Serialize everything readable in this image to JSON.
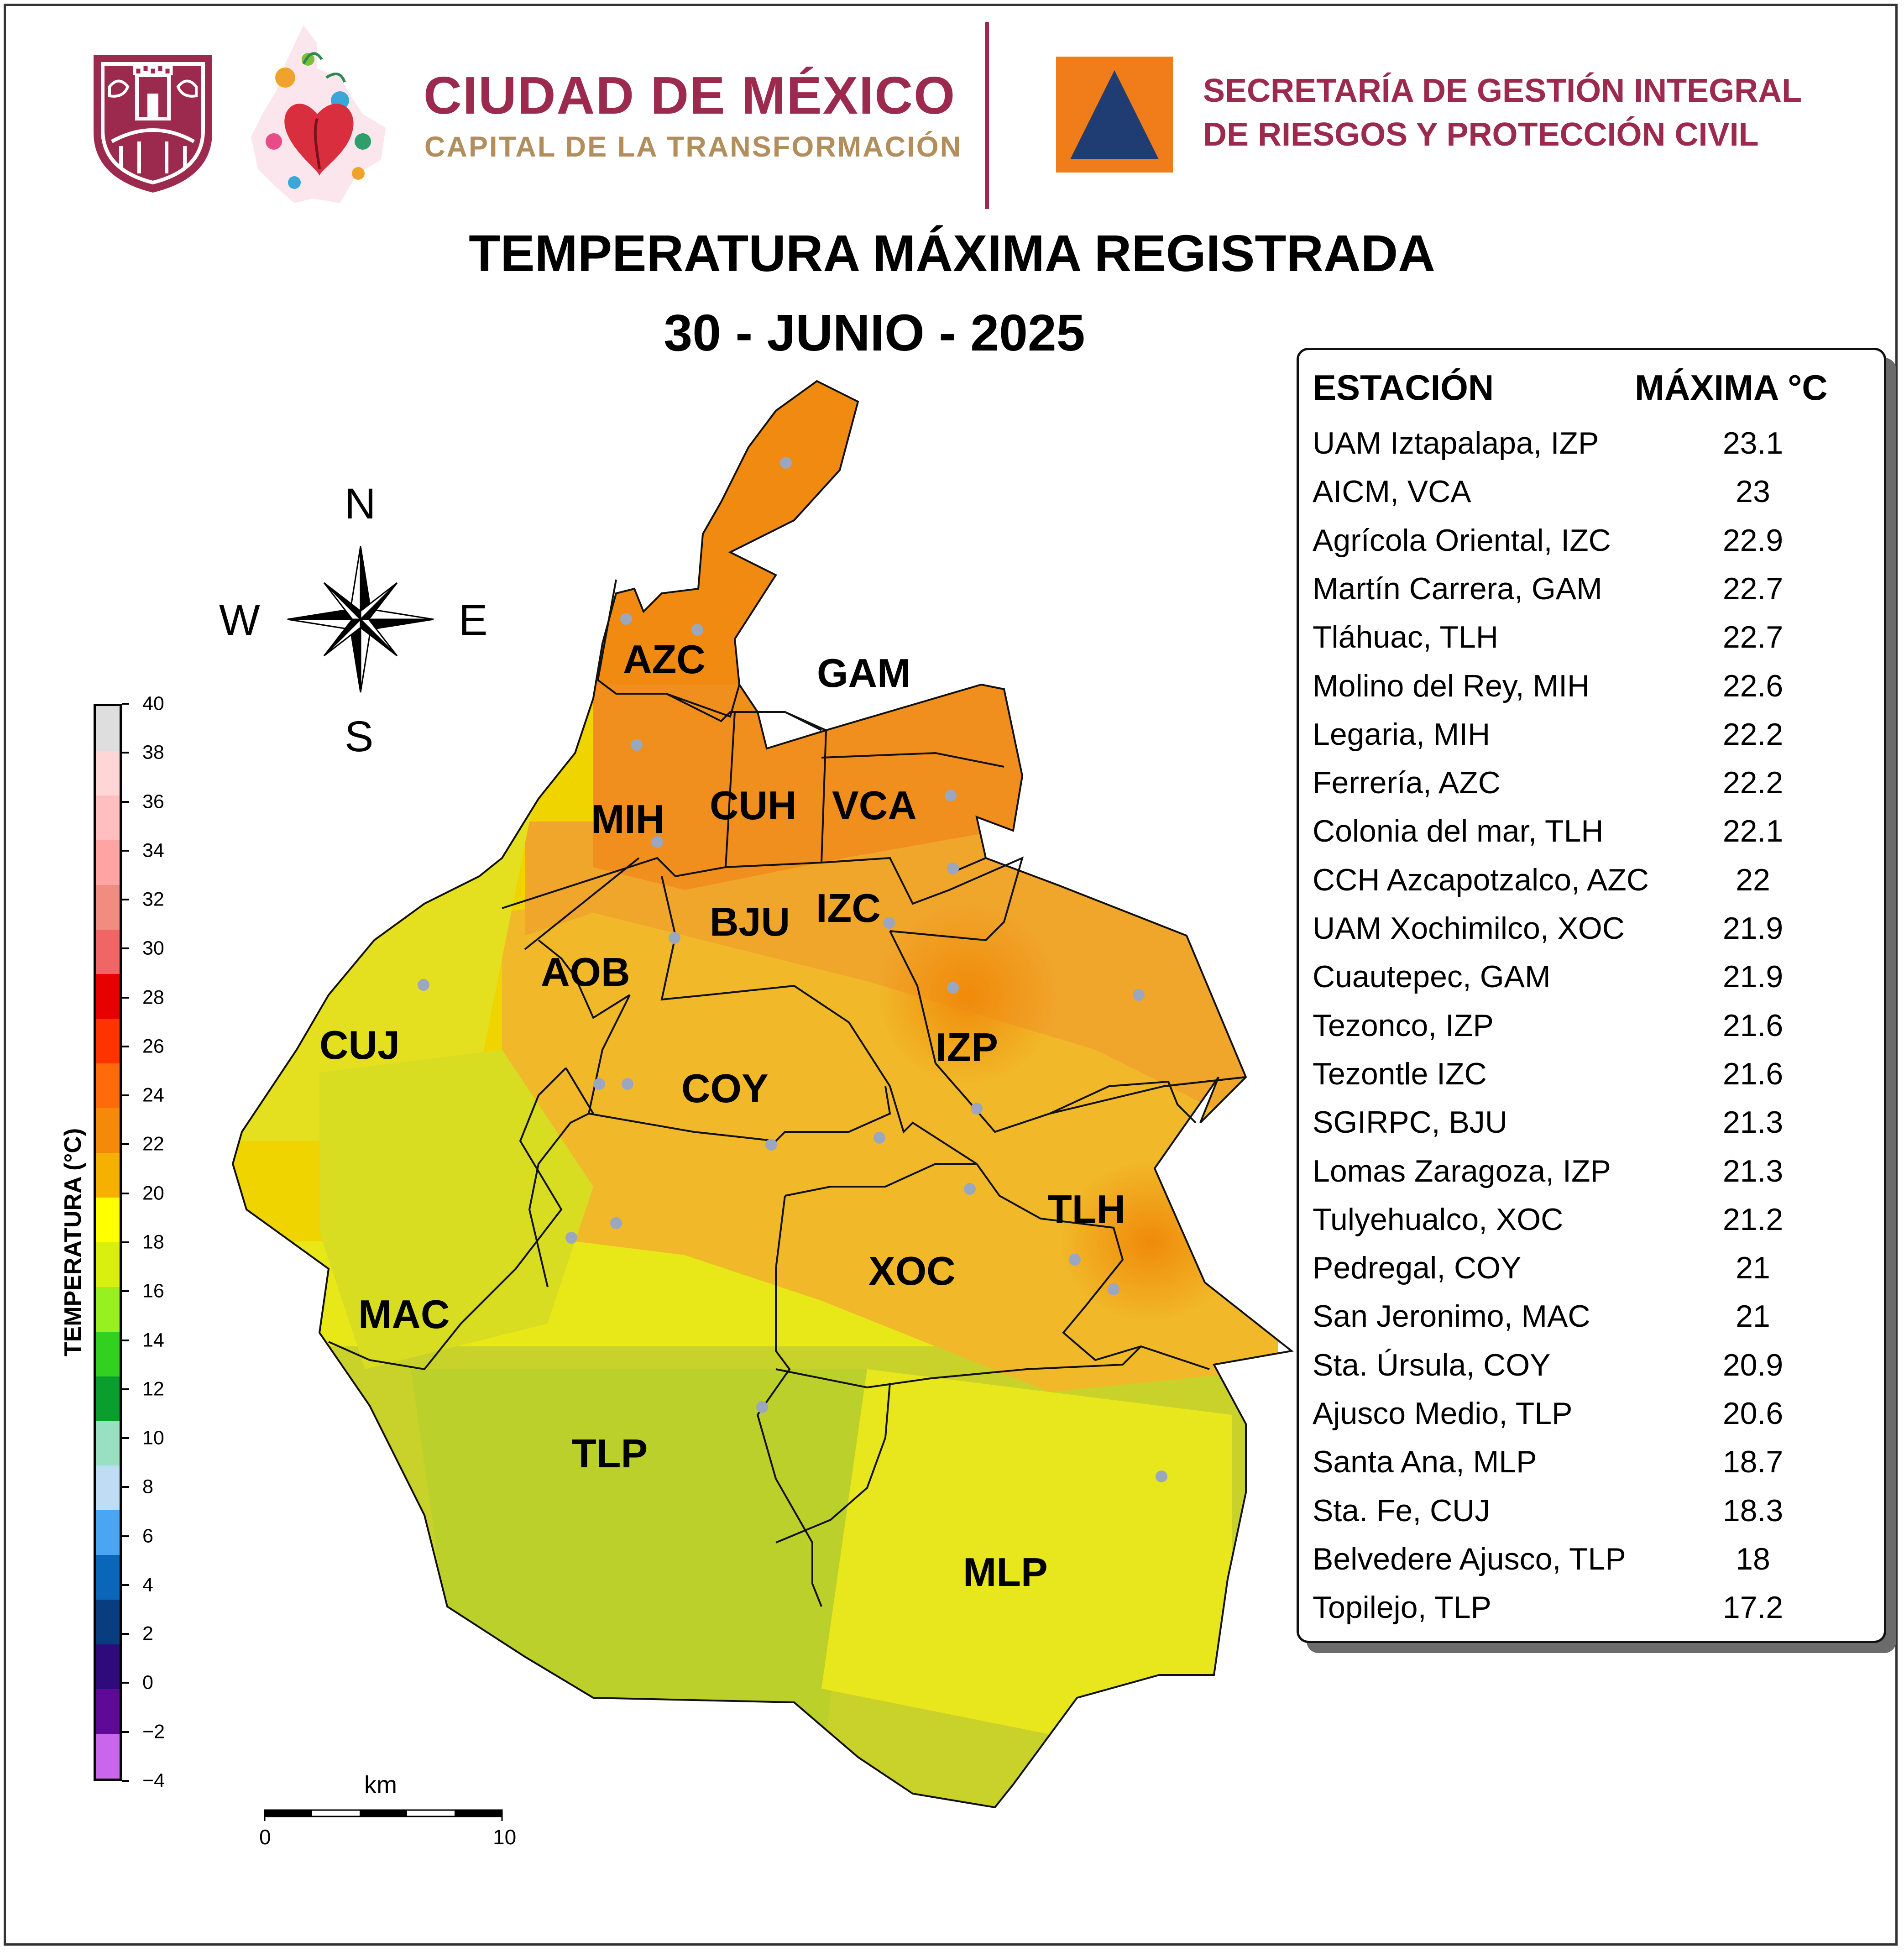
{
  "header": {
    "cdmx_title": "CIUDAD DE MÉXICO",
    "cdmx_subtitle": "CAPITAL DE LA TRANSFORMACIÓN",
    "secretaria_line1": "SECRETARÍA DE GESTIÓN INTEGRAL",
    "secretaria_line2": "DE RIESGOS Y PROTECCIÓN CIVIL",
    "brand_color": "#9c2a4f",
    "gold_color": "#b38e5d",
    "logos": [
      "cdmx-castle-shield-icon",
      "cdmx-floral-heart-map-icon",
      "proteccion-civil-triangle-icon"
    ]
  },
  "title": {
    "line1": "TEMPERATURA MÁXIMA REGISTRADA",
    "line2": "30 - JUNIO - 2025"
  },
  "compass": {
    "n": "N",
    "s": "S",
    "e": "E",
    "w": "W"
  },
  "colorbar": {
    "label": "TEMPERATURA (°C)",
    "ticks": [
      "40",
      "38",
      "36",
      "34",
      "32",
      "30",
      "28",
      "26",
      "24",
      "22",
      "20",
      "18",
      "16",
      "14",
      "12",
      "10",
      "8",
      "6",
      "4",
      "2",
      "0",
      "−2",
      "−4"
    ],
    "colors": [
      "#dedede",
      "#ffd6d6",
      "#ffbfbf",
      "#ffa3a3",
      "#f28b80",
      "#f06666",
      "#e60000",
      "#ff3300",
      "#ff6b0a",
      "#f58a0a",
      "#f5b000",
      "#ffff00",
      "#d9f00f",
      "#99f020",
      "#33d11f",
      "#0a9e2e",
      "#99e0c2",
      "#bfdcf5",
      "#4aa6f2",
      "#0a66b8",
      "#0a3d80",
      "#2e0a7a",
      "#5e0a96",
      "#c966eb"
    ]
  },
  "scale_bar": {
    "unit": "km",
    "start": "0",
    "end": "10"
  },
  "map": {
    "municipalities": [
      "AZC",
      "GAM",
      "MIH",
      "CUH",
      "VCA",
      "BJU",
      "IZC",
      "AOB",
      "CUJ",
      "IZP",
      "COY",
      "TLH",
      "XOC",
      "MAC",
      "TLP",
      "MLP"
    ]
  },
  "stations_table": {
    "header_station": "ESTACIÓN",
    "header_max": "MÁXIMA °C",
    "rows": [
      {
        "name": "UAM Iztapalapa, IZP",
        "value": "23.1"
      },
      {
        "name": "AICM, VCA",
        "value": "23"
      },
      {
        "name": "Agrícola Oriental, IZC",
        "value": "22.9"
      },
      {
        "name": "Martín Carrera, GAM",
        "value": "22.7"
      },
      {
        "name": "Tláhuac, TLH",
        "value": "22.7"
      },
      {
        "name": "Molino del Rey, MIH",
        "value": "22.6"
      },
      {
        "name": "Legaria, MIH",
        "value": "22.2"
      },
      {
        "name": "Ferrería, AZC",
        "value": "22.2"
      },
      {
        "name": "Colonia del mar, TLH",
        "value": "22.1"
      },
      {
        "name": "CCH Azcapotzalco, AZC",
        "value": "22"
      },
      {
        "name": "UAM Xochimilco, XOC",
        "value": "21.9"
      },
      {
        "name": "Cuautepec, GAM",
        "value": "21.9"
      },
      {
        "name": "Tezonco, IZP",
        "value": "21.6"
      },
      {
        "name": "Tezontle IZC",
        "value": "21.6"
      },
      {
        "name": "SGIRPC, BJU",
        "value": "21.3"
      },
      {
        "name": "Lomas Zaragoza, IZP",
        "value": "21.3"
      },
      {
        "name": "Tulyehualco, XOC",
        "value": "21.2"
      },
      {
        "name": "Pedregal, COY",
        "value": "21"
      },
      {
        "name": "San Jeronimo, MAC",
        "value": "21"
      },
      {
        "name": "Sta. Úrsula, COY",
        "value": "20.9"
      },
      {
        "name": "Ajusco Medio, TLP",
        "value": "20.6"
      },
      {
        "name": "Santa Ana, MLP",
        "value": "18.7"
      },
      {
        "name": "Sta. Fe, CUJ",
        "value": "18.3"
      },
      {
        "name": "Belvedere Ajusco, TLP",
        "value": "18"
      },
      {
        "name": "Topilejo, TLP",
        "value": "17.2"
      }
    ]
  }
}
